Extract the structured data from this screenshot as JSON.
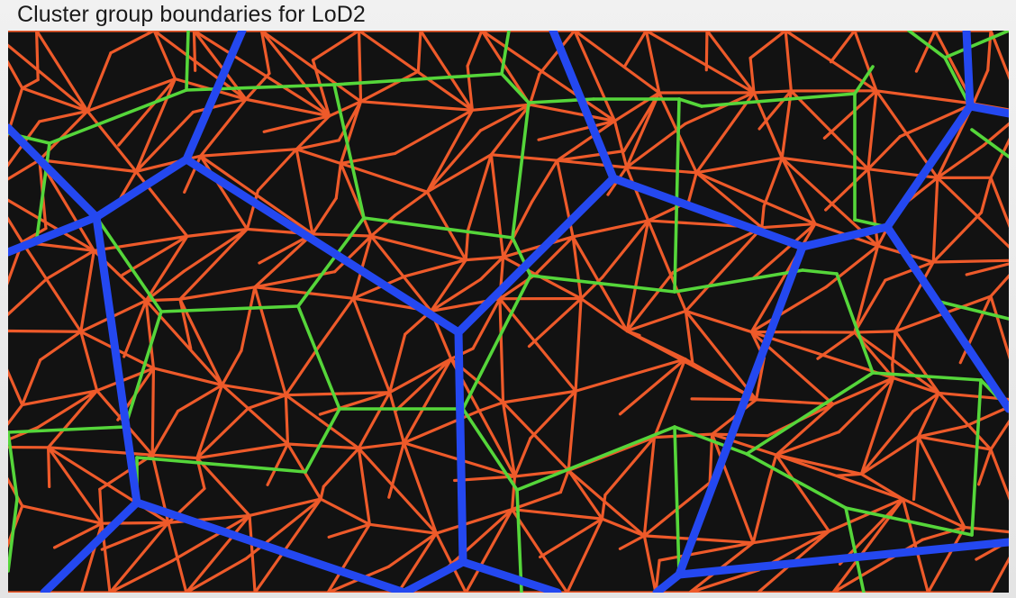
{
  "slide": {
    "title": "Cluster group boundaries for LoD2"
  },
  "visualization": {
    "background_color": "#121212",
    "layers": [
      {
        "key": "cluster_edges",
        "color": "#ee5a2a"
      },
      {
        "key": "group_edges",
        "color": "#55d63a"
      },
      {
        "key": "lod2_boundaries",
        "color": "#2448f0"
      }
    ]
  }
}
